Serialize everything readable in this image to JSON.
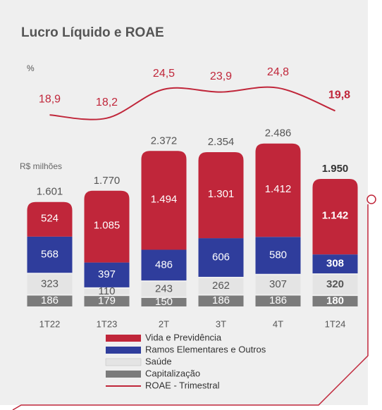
{
  "chart_data": {
    "type": "bar",
    "title": "Lucro Líquido e ROAE",
    "y2_label": "%",
    "y_label": "R$ milhões",
    "categories": [
      "1T22",
      "1T23",
      "2T",
      "3T",
      "4T",
      "1T24"
    ],
    "series": [
      {
        "name": "Vida e Previdência",
        "color": "#c0263a",
        "values": [
          524,
          1085,
          1494,
          1301,
          1412,
          1142
        ],
        "value_labels": [
          "524",
          "1.085",
          "1.494",
          "1.301",
          "1.412",
          "1.142"
        ]
      },
      {
        "name": "Ramos Elementares e Outros",
        "color": "#2f3d9c",
        "values": [
          568,
          397,
          486,
          606,
          580,
          308
        ]
      },
      {
        "name": "Saúde",
        "color": "#e4e4e4",
        "values": [
          323,
          110,
          243,
          262,
          307,
          320
        ]
      },
      {
        "name": "Capitalização",
        "color": "#7b7b7b",
        "values": [
          186,
          179,
          150,
          186,
          186,
          180
        ]
      },
      {
        "name": "ROAE - Trimestral",
        "color": "#c0263a",
        "type": "line",
        "axis": "y2",
        "values": [
          18.9,
          18.2,
          24.5,
          23.9,
          24.8,
          19.8
        ],
        "value_labels": [
          "18,9",
          "18,2",
          "24,5",
          "23,9",
          "24,8",
          "19,8"
        ]
      }
    ],
    "totals": {
      "values": [
        1601,
        1770,
        2372,
        2354,
        2486,
        1950
      ],
      "value_labels": [
        "1.601",
        "1.770",
        "2.372",
        "2.354",
        "2.486",
        "1.950"
      ]
    },
    "ylim": [
      0,
      2600
    ],
    "y2lim": [
      10,
      30
    ]
  }
}
